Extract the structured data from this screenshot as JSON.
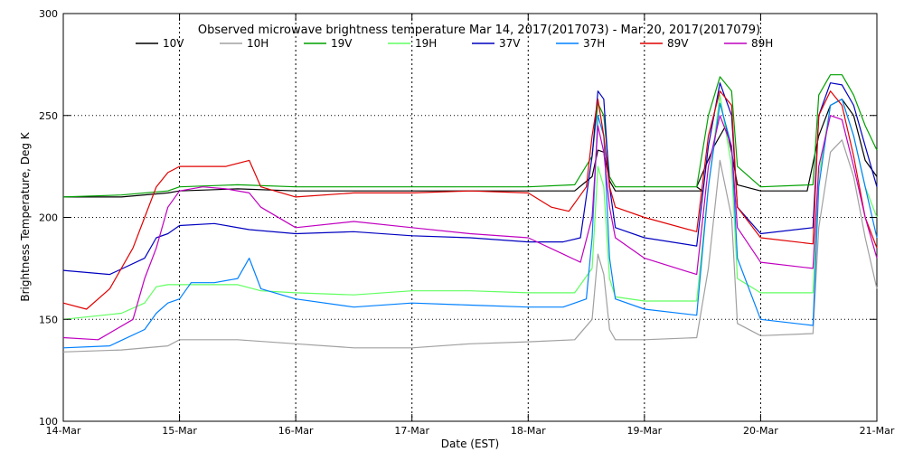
{
  "chart_data": {
    "type": "line",
    "title": "Observed microwave brightness temperature Mar 14, 2017(2017073) - Mar 20, 2017(2017079)",
    "xlabel": "Date (EST)",
    "ylabel": "Brightness Temperature, Deg K",
    "xlim": [
      0,
      7
    ],
    "ylim": [
      100,
      300
    ],
    "grid": true,
    "legend_position": "top",
    "x_ticks": [
      {
        "value": 0,
        "label": "14-Mar"
      },
      {
        "value": 1,
        "label": "15-Mar"
      },
      {
        "value": 2,
        "label": "16-Mar"
      },
      {
        "value": 3,
        "label": "17-Mar"
      },
      {
        "value": 4,
        "label": "18-Mar"
      },
      {
        "value": 5,
        "label": "19-Mar"
      },
      {
        "value": 6,
        "label": "20-Mar"
      },
      {
        "value": 7,
        "label": "21-Mar"
      }
    ],
    "y_ticks": [
      {
        "value": 100,
        "label": "100"
      },
      {
        "value": 150,
        "label": "150"
      },
      {
        "value": 200,
        "label": "200"
      },
      {
        "value": 250,
        "label": "250"
      },
      {
        "value": 300,
        "label": "300"
      }
    ],
    "series": [
      {
        "name": "10V",
        "color": "#000000",
        "x": [
          0,
          0.5,
          0.9,
          1.0,
          1.5,
          2.0,
          2.5,
          3.0,
          3.5,
          4.0,
          4.4,
          4.55,
          4.6,
          4.65,
          4.7,
          4.75,
          5.0,
          5.5,
          5.45,
          5.6,
          5.7,
          5.75,
          5.8,
          6.0,
          6.4,
          6.5,
          6.6,
          6.7,
          6.8,
          6.9,
          7.0
        ],
        "y": [
          210,
          210,
          212,
          213,
          214,
          213,
          213,
          213,
          213,
          213,
          213,
          220,
          233,
          232,
          218,
          213,
          213,
          213,
          215,
          235,
          245,
          232,
          216,
          213,
          213,
          240,
          255,
          258,
          250,
          228,
          220
        ]
      },
      {
        "name": "10H",
        "color": "#a0a0a0",
        "x": [
          0,
          0.5,
          0.9,
          1.0,
          1.5,
          2.0,
          2.5,
          3.0,
          3.5,
          4.0,
          4.4,
          4.55,
          4.6,
          4.65,
          4.7,
          4.75,
          5.0,
          5.45,
          5.55,
          5.65,
          5.75,
          5.8,
          6.0,
          6.45,
          6.5,
          6.6,
          6.7,
          6.8,
          6.9,
          7.0
        ],
        "y": [
          134,
          135,
          137,
          140,
          140,
          138,
          136,
          136,
          138,
          139,
          140,
          150,
          182,
          172,
          145,
          140,
          140,
          141,
          175,
          228,
          200,
          148,
          142,
          143,
          195,
          232,
          238,
          220,
          190,
          165
        ]
      },
      {
        "name": "19V",
        "color": "#00a000",
        "x": [
          0,
          0.5,
          0.9,
          1.0,
          1.5,
          2.0,
          2.5,
          3.0,
          3.5,
          4.0,
          4.4,
          4.55,
          4.6,
          4.65,
          4.7,
          4.75,
          5.0,
          5.45,
          5.55,
          5.65,
          5.75,
          5.8,
          6.0,
          6.45,
          6.5,
          6.6,
          6.7,
          6.8,
          6.9,
          7.0
        ],
        "y": [
          210,
          211,
          213,
          215,
          216,
          215,
          215,
          215,
          215,
          215,
          216,
          230,
          256,
          250,
          220,
          215,
          215,
          215,
          250,
          269,
          262,
          225,
          215,
          216,
          260,
          270,
          270,
          260,
          245,
          233
        ]
      },
      {
        "name": "19H",
        "color": "#60ff60",
        "x": [
          0,
          0.5,
          0.7,
          0.8,
          0.9,
          1.0,
          1.5,
          1.7,
          2.0,
          2.5,
          3.0,
          3.5,
          4.0,
          4.4,
          4.55,
          4.6,
          4.65,
          4.7,
          4.75,
          5.0,
          5.45,
          5.55,
          5.65,
          5.75,
          5.8,
          6.0,
          6.45,
          6.5,
          6.6,
          6.7,
          6.8,
          6.9,
          7.0
        ],
        "y": [
          150,
          153,
          158,
          166,
          167,
          167,
          167,
          164,
          163,
          162,
          164,
          164,
          163,
          163,
          175,
          225,
          215,
          170,
          161,
          159,
          159,
          215,
          260,
          225,
          170,
          163,
          163,
          220,
          255,
          258,
          240,
          215,
          200
        ]
      },
      {
        "name": "37V",
        "color": "#0000c0",
        "x": [
          0,
          0.4,
          0.7,
          0.8,
          0.9,
          1.0,
          1.3,
          1.6,
          2.0,
          2.5,
          3.0,
          3.5,
          4.0,
          4.3,
          4.45,
          4.55,
          4.6,
          4.65,
          4.7,
          4.75,
          5.0,
          5.45,
          5.55,
          5.65,
          5.75,
          5.8,
          6.0,
          6.45,
          6.5,
          6.6,
          6.7,
          6.8,
          6.9,
          7.0
        ],
        "y": [
          174,
          172,
          180,
          190,
          192,
          196,
          197,
          194,
          192,
          193,
          191,
          190,
          188,
          188,
          190,
          230,
          262,
          258,
          215,
          195,
          190,
          186,
          235,
          266,
          250,
          205,
          192,
          195,
          250,
          266,
          265,
          255,
          235,
          215
        ]
      },
      {
        "name": "37H",
        "color": "#0080ff",
        "x": [
          0,
          0.4,
          0.7,
          0.8,
          0.9,
          1.0,
          1.1,
          1.3,
          1.5,
          1.6,
          1.7,
          2.0,
          2.5,
          3.0,
          3.5,
          4.0,
          4.3,
          4.5,
          4.55,
          4.6,
          4.65,
          4.7,
          4.75,
          5.0,
          5.45,
          5.55,
          5.65,
          5.75,
          5.8,
          6.0,
          6.45,
          6.5,
          6.6,
          6.7,
          6.8,
          6.9,
          7.0
        ],
        "y": [
          136,
          137,
          145,
          153,
          158,
          160,
          168,
          168,
          170,
          180,
          165,
          160,
          156,
          158,
          157,
          156,
          156,
          160,
          190,
          250,
          240,
          180,
          160,
          155,
          152,
          215,
          256,
          235,
          180,
          150,
          147,
          215,
          255,
          258,
          240,
          215,
          190
        ]
      },
      {
        "name": "89V",
        "color": "#e00000",
        "x": [
          0,
          0.2,
          0.4,
          0.6,
          0.7,
          0.8,
          0.9,
          1.0,
          1.2,
          1.4,
          1.6,
          1.7,
          2.0,
          2.5,
          3.0,
          3.5,
          4.0,
          4.2,
          4.35,
          4.5,
          4.55,
          4.6,
          4.65,
          4.7,
          4.75,
          5.0,
          5.45,
          5.55,
          5.65,
          5.75,
          5.8,
          6.0,
          6.45,
          6.5,
          6.6,
          6.7,
          6.8,
          6.9,
          7.0
        ],
        "y": [
          158,
          155,
          165,
          185,
          200,
          215,
          222,
          225,
          225,
          225,
          228,
          215,
          210,
          212,
          212,
          213,
          212,
          205,
          203,
          215,
          240,
          258,
          240,
          215,
          205,
          200,
          193,
          240,
          262,
          255,
          205,
          190,
          187,
          250,
          262,
          255,
          230,
          200,
          185
        ]
      },
      {
        "name": "89H",
        "color": "#c000c0",
        "x": [
          0,
          0.3,
          0.6,
          0.7,
          0.8,
          0.9,
          1.0,
          1.2,
          1.4,
          1.6,
          1.7,
          2.0,
          2.5,
          3.0,
          3.5,
          4.0,
          4.3,
          4.45,
          4.55,
          4.6,
          4.65,
          4.7,
          4.75,
          5.0,
          5.45,
          5.55,
          5.65,
          5.75,
          5.8,
          6.0,
          6.45,
          6.5,
          6.6,
          6.7,
          6.8,
          6.9,
          7.0
        ],
        "y": [
          141,
          140,
          150,
          170,
          185,
          205,
          213,
          215,
          214,
          212,
          205,
          195,
          198,
          195,
          192,
          190,
          182,
          178,
          200,
          245,
          232,
          205,
          190,
          180,
          172,
          225,
          250,
          235,
          195,
          178,
          175,
          225,
          250,
          248,
          225,
          200,
          180
        ]
      }
    ]
  }
}
